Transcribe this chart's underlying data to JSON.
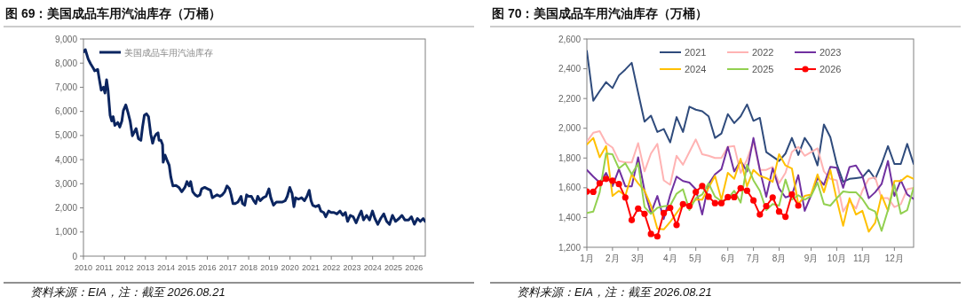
{
  "chart_data": [
    {
      "type": "line",
      "title": "图 69：美国成品车用汽油库存（万桶）",
      "annotations": [
        "资料来源：EIA，注：截至 2026.08.21"
      ],
      "legend": "top",
      "xlim": [
        2010,
        2026.55
      ],
      "ylim": [
        0,
        9000
      ],
      "xticks": [
        2010,
        2011,
        2012,
        2013,
        2014,
        2015,
        2016,
        2017,
        2018,
        2019,
        2020,
        2021,
        2022,
        2023,
        2024,
        2025,
        2026
      ],
      "yticks": [
        0,
        {
          "value": 1000,
          "label": "1,000"
        },
        {
          "value": 2000,
          "label": "2,000"
        },
        {
          "value": 3000,
          "label": "3,000"
        },
        {
          "value": 4000,
          "label": "4,000"
        },
        {
          "value": 5000,
          "label": "5,000"
        },
        {
          "value": 6000,
          "label": "6,000"
        },
        {
          "value": 7000,
          "label": "7,000"
        },
        {
          "value": 8000,
          "label": "8,000"
        },
        {
          "value": 9000,
          "label": "9,000"
        }
      ],
      "series": [
        {
          "name": "美国成品车用汽油库存",
          "color": "#0b2560",
          "x": [
            2010.0,
            2010.09,
            2010.23,
            2010.34,
            2010.47,
            2010.54,
            2010.69,
            2010.76,
            2010.86,
            2010.97,
            2011.04,
            2011.12,
            2011.19,
            2011.29,
            2011.37,
            2011.44,
            2011.52,
            2011.66,
            2011.76,
            2011.86,
            2011.93,
            2012.05,
            2012.15,
            2012.26,
            2012.37,
            2012.55,
            2012.66,
            2012.78,
            2012.86,
            2012.95,
            2013.05,
            2013.15,
            2013.26,
            2013.35,
            2013.43,
            2013.52,
            2013.61,
            2013.66,
            2013.75,
            2013.83,
            2013.86,
            2013.95,
            2014.03,
            2014.15,
            2014.23,
            2014.33,
            2014.48,
            2014.62,
            2014.76,
            2014.91,
            2015.01,
            2015.12,
            2015.19,
            2015.29,
            2015.41,
            2015.52,
            2015.64,
            2015.72,
            2015.87,
            2016.01,
            2016.15,
            2016.24,
            2016.35,
            2016.47,
            2016.61,
            2016.72,
            2016.84,
            2016.95,
            2017.07,
            2017.15,
            2017.24,
            2017.35,
            2017.48,
            2017.63,
            2017.7,
            2017.81,
            2017.9,
            2017.98,
            2018.13,
            2018.24,
            2018.34,
            2018.44,
            2018.56,
            2018.7,
            2018.84,
            2018.98,
            2019.07,
            2019.2,
            2019.34,
            2019.49,
            2019.63,
            2019.77,
            2019.87,
            2019.99,
            2020.1,
            2020.19,
            2020.27,
            2020.41,
            2020.56,
            2020.7,
            2020.82,
            2020.93,
            2021.02,
            2021.1,
            2021.24,
            2021.39,
            2021.49,
            2021.63,
            2021.73,
            2021.87,
            2021.99,
            2022.13,
            2022.27,
            2022.42,
            2022.56,
            2022.68,
            2022.79,
            2022.92,
            2023.06,
            2023.2,
            2023.35,
            2023.45,
            2023.56,
            2023.71,
            2023.85,
            2023.99,
            2024.11,
            2024.25,
            2024.39,
            2024.54,
            2024.68,
            2024.82,
            2024.96,
            2025.11,
            2025.28,
            2025.42,
            2025.56,
            2025.74,
            2025.88,
            2026.02,
            2026.17,
            2026.31,
            2026.45,
            2026.54
          ],
          "values": [
            8470,
            8560,
            8170,
            7980,
            7800,
            7680,
            7740,
            7370,
            6880,
            7000,
            6760,
            7310,
            6880,
            5840,
            5600,
            5780,
            5420,
            5540,
            5350,
            5600,
            6030,
            6270,
            5970,
            5600,
            4990,
            5290,
            4870,
            4800,
            5350,
            5840,
            5900,
            5780,
            5050,
            4680,
            4930,
            5050,
            5110,
            4800,
            4800,
            4620,
            3890,
            4190,
            4010,
            3770,
            3280,
            2910,
            2930,
            2850,
            2670,
            2850,
            3090,
            2910,
            3090,
            2670,
            2540,
            2480,
            2540,
            2790,
            2850,
            2790,
            2730,
            2420,
            2480,
            2540,
            2480,
            2540,
            2670,
            2910,
            2790,
            2540,
            2180,
            2180,
            2240,
            2480,
            2180,
            2110,
            2540,
            2480,
            2480,
            2300,
            2180,
            2480,
            2300,
            2420,
            2480,
            2790,
            2420,
            2110,
            2240,
            2240,
            2240,
            2300,
            2480,
            2850,
            2600,
            2050,
            2420,
            2360,
            2420,
            2300,
            2480,
            2730,
            2300,
            2110,
            2050,
            2110,
            1870,
            1810,
            1630,
            1870,
            1810,
            1810,
            1750,
            1870,
            1690,
            1810,
            1440,
            1690,
            1630,
            1380,
            1690,
            1870,
            1500,
            1690,
            1500,
            1870,
            1560,
            1320,
            1560,
            1750,
            1440,
            1320,
            1690,
            1440,
            1560,
            1690,
            1500,
            1500,
            1630,
            1320,
            1560,
            1440,
            1560,
            1440
          ]
        }
      ]
    },
    {
      "type": "line",
      "title": "图 70：美国成品车用汽油库存（万桶）",
      "annotations": [
        "资料来源：EIA，注：截至 2026.08.21"
      ],
      "legend": "top",
      "ylim": [
        1200,
        2600
      ],
      "categories": [
        "1月",
        null,
        null,
        null,
        "2月",
        null,
        null,
        null,
        "3月",
        null,
        null,
        null,
        null,
        "4月",
        null,
        null,
        null,
        "5月",
        null,
        null,
        null,
        null,
        "6月",
        null,
        null,
        null,
        "7月",
        null,
        null,
        null,
        "8月",
        null,
        null,
        null,
        null,
        "9月",
        null,
        null,
        null,
        "10月",
        null,
        null,
        null,
        "11月",
        null,
        null,
        null,
        null,
        "12月",
        null,
        null,
        null
      ],
      "yticks": [
        {
          "value": 1200,
          "label": "1,200"
        },
        {
          "value": 1400,
          "label": "1,400"
        },
        {
          "value": 1600,
          "label": "1,600"
        },
        {
          "value": 1800,
          "label": "1,800"
        },
        {
          "value": 2000,
          "label": "2,000"
        },
        {
          "value": 2200,
          "label": "2,200"
        },
        {
          "value": 2400,
          "label": "2,400"
        },
        {
          "value": 2600,
          "label": "2,600"
        }
      ],
      "series": [
        {
          "name": "2021",
          "color": "#2f4b7c",
          "values": [
            2520,
            2185,
            2250,
            2310,
            2270,
            2355,
            2395,
            2440,
            2240,
            2045,
            2085,
            1975,
            1995,
            1905,
            2075,
            1975,
            2145,
            2125,
            2115,
            2080,
            1935,
            1965,
            2095,
            2035,
            2080,
            2160,
            2050,
            2070,
            1840,
            1810,
            1780,
            1830,
            1935,
            1820,
            1935,
            1870,
            1750,
            2025,
            1940,
            1760,
            1640,
            1660,
            1665,
            1670,
            1720,
            1660,
            1760,
            1880,
            1760,
            1760,
            1895,
            1760
          ]
        },
        {
          "name": "2022",
          "color": "#ffb3b3",
          "values": [
            1910,
            1970,
            1980,
            1900,
            1870,
            1780,
            1770,
            1770,
            1900,
            1710,
            1830,
            1895,
            1650,
            1620,
            1815,
            1755,
            1840,
            1925,
            1825,
            1815,
            1800,
            1800,
            1875,
            1880,
            1700,
            1790,
            1910,
            1720,
            1720,
            1740,
            1630,
            1700,
            1840,
            1875,
            1815,
            1840,
            1865,
            1710,
            1660,
            1650,
            1440,
            1510,
            1460,
            1580,
            1660,
            1670,
            1530,
            1530,
            1470,
            1490,
            1590,
            1600
          ]
        },
        {
          "name": "2023",
          "color": "#7030a0",
          "values": [
            1720,
            1675,
            1635,
            1700,
            1610,
            1725,
            1610,
            1610,
            1805,
            1580,
            1430,
            1545,
            1390,
            1550,
            1675,
            1645,
            1635,
            1590,
            1420,
            1625,
            1690,
            1725,
            1875,
            1710,
            1780,
            1710,
            1935,
            1720,
            1540,
            1730,
            1595,
            1535,
            1550,
            1685,
            1445,
            1550,
            1665,
            1620,
            1740,
            1735,
            1600,
            1740,
            1750,
            1680,
            1530,
            1570,
            1625,
            1780,
            1545,
            1650,
            1555,
            1525
          ]
        },
        {
          "name": "2024",
          "color": "#ffc000",
          "values": [
            1890,
            1935,
            1805,
            1880,
            1545,
            1580,
            1545,
            1690,
            1630,
            1580,
            1480,
            1325,
            1320,
            1370,
            1430,
            1490,
            1480,
            1520,
            1520,
            1600,
            1680,
            1520,
            1700,
            1660,
            1795,
            1610,
            1720,
            1680,
            1665,
            1640,
            1825,
            1750,
            1730,
            1490,
            1545,
            1555,
            1690,
            1570,
            1720,
            1520,
            1345,
            1530,
            1420,
            1445,
            1305,
            1365,
            1550,
            1445,
            1645,
            1645,
            1680,
            1660
          ]
        },
        {
          "name": "2025",
          "color": "#92d050",
          "values": [
            1430,
            1440,
            1570,
            1830,
            1825,
            1730,
            1765,
            1690,
            1765,
            1470,
            1425,
            1465,
            1475,
            1480,
            1560,
            1590,
            1450,
            1530,
            1555,
            1630,
            1540,
            1510,
            1525,
            1580,
            1500,
            1755,
            1650,
            1580,
            1450,
            1490,
            1480,
            1655,
            1520,
            1550,
            1520,
            1545,
            1635,
            1490,
            1480,
            1530,
            1575,
            1570,
            1570,
            1525,
            1460,
            1440,
            1310,
            1450,
            1620,
            1425,
            1450,
            1600
          ]
        },
        {
          "name": "2026",
          "color": "#ff0000",
          "marker": "circle",
          "values": [
            1575,
            1573,
            1630,
            1660,
            1648,
            1625,
            1535,
            1383,
            1460,
            1425,
            1290,
            1273,
            1430,
            1465,
            1350,
            1490,
            1477,
            1572,
            1612,
            1540,
            1497,
            1497,
            1537,
            1537,
            1597,
            1580,
            1515,
            1420,
            1477,
            1535,
            1440,
            1405,
            1555,
            1480,
            null,
            null,
            null,
            null,
            null,
            null,
            null,
            null,
            null,
            null,
            null,
            null,
            null,
            null,
            null,
            null,
            null,
            null
          ]
        }
      ]
    }
  ]
}
